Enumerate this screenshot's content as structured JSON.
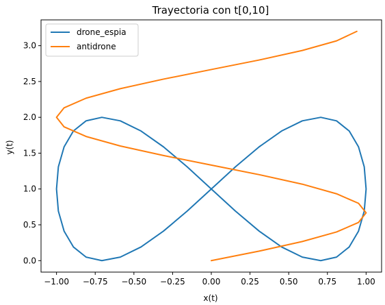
{
  "chart_data": {
    "type": "line",
    "title": "Trayectoria con t[0,10]",
    "xlabel": "x(t)",
    "ylabel": "y(t)",
    "xlim": [
      -1.1,
      1.1
    ],
    "ylim": [
      -0.16,
      3.36
    ],
    "xticks": [
      -1.0,
      -0.75,
      -0.5,
      -0.25,
      0.0,
      0.25,
      0.5,
      0.75,
      1.0
    ],
    "xtick_labels": [
      "−1.00",
      "−0.75",
      "−0.50",
      "−0.25",
      "0.00",
      "0.25",
      "0.50",
      "0.75",
      "1.00"
    ],
    "yticks": [
      0.0,
      0.5,
      1.0,
      1.5,
      2.0,
      2.5,
      3.0
    ],
    "ytick_labels": [
      "0.0",
      "0.5",
      "1.0",
      "1.5",
      "2.0",
      "2.5",
      "3.0"
    ],
    "grid": false,
    "legend": {
      "position": "top-left"
    },
    "series": [
      {
        "name": "drone_espia",
        "color": "#1f77b4",
        "x": [
          0.0,
          0.156,
          0.309,
          0.454,
          0.588,
          0.707,
          0.809,
          0.891,
          0.951,
          0.988,
          1.0,
          0.988,
          0.951,
          0.891,
          0.809,
          0.707,
          0.588,
          0.454,
          0.309,
          0.156,
          0.0,
          -0.156,
          -0.309,
          -0.454,
          -0.588,
          -0.707,
          -0.809,
          -0.891,
          -0.951,
          -0.988,
          -1.0,
          -0.988,
          -0.951,
          -0.891,
          -0.809,
          -0.707,
          -0.588,
          -0.454,
          -0.309,
          -0.156,
          0.0
        ],
        "y": [
          1.0,
          1.309,
          1.588,
          1.809,
          1.951,
          2.0,
          1.951,
          1.809,
          1.588,
          1.309,
          1.0,
          0.691,
          0.412,
          0.191,
          0.049,
          0.0,
          0.049,
          0.191,
          0.412,
          0.691,
          1.0,
          1.309,
          1.588,
          1.809,
          1.951,
          2.0,
          1.951,
          1.809,
          1.588,
          1.309,
          1.0,
          0.691,
          0.412,
          0.191,
          0.049,
          0.0,
          0.049,
          0.191,
          0.412,
          0.691,
          1.0
        ]
      },
      {
        "name": "antidrone",
        "color": "#ff7f0e",
        "x": [
          0.0,
          0.309,
          0.588,
          0.809,
          0.951,
          1.0,
          0.951,
          0.809,
          0.588,
          0.309,
          0.0,
          -0.309,
          -0.588,
          -0.809,
          -0.951,
          -1.0,
          -0.951,
          -0.809,
          -0.588,
          -0.309,
          0.0,
          0.309,
          0.588,
          0.809,
          0.94
        ],
        "y": [
          0.0,
          0.133,
          0.267,
          0.4,
          0.533,
          0.667,
          0.8,
          0.933,
          1.067,
          1.2,
          1.333,
          1.467,
          1.6,
          1.733,
          1.867,
          2.0,
          2.133,
          2.267,
          2.4,
          2.533,
          2.667,
          2.8,
          2.933,
          3.067,
          3.2
        ]
      }
    ]
  }
}
